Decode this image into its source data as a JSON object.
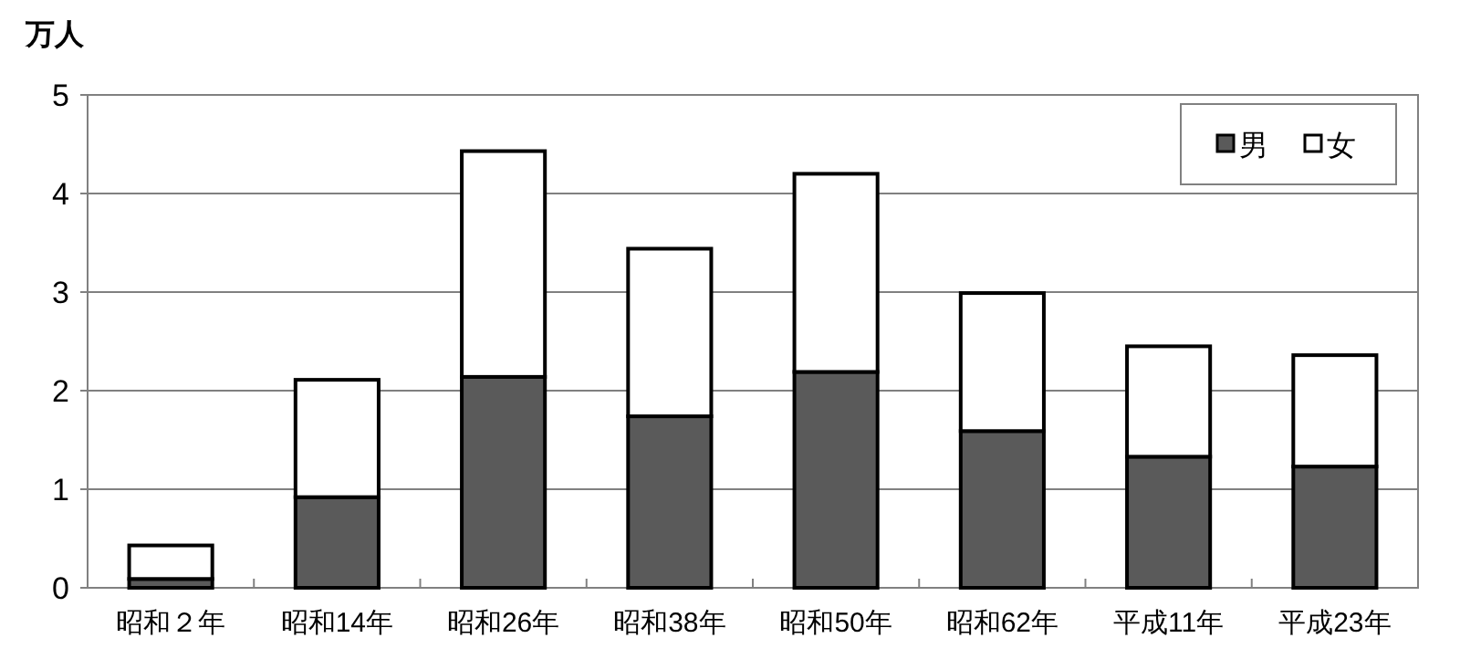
{
  "chart_data": {
    "type": "bar",
    "stacked": true,
    "ylabel": "万人",
    "categories": [
      "昭和２年",
      "昭和14年",
      "昭和26年",
      "昭和38年",
      "昭和50年",
      "昭和62年",
      "平成11年",
      "平成23年"
    ],
    "series": [
      {
        "name": "男",
        "color": "#5a5a5a",
        "values": [
          0.09,
          0.92,
          2.14,
          1.74,
          2.19,
          1.59,
          1.33,
          1.23
        ]
      },
      {
        "name": "女",
        "color": "#ffffff",
        "values": [
          0.34,
          1.19,
          2.29,
          1.7,
          2.01,
          1.4,
          1.12,
          1.13
        ]
      }
    ],
    "ylim": [
      0,
      5
    ],
    "yticks": [
      0,
      1,
      2,
      3,
      4,
      5
    ],
    "grid": "y",
    "legend": "top right"
  }
}
